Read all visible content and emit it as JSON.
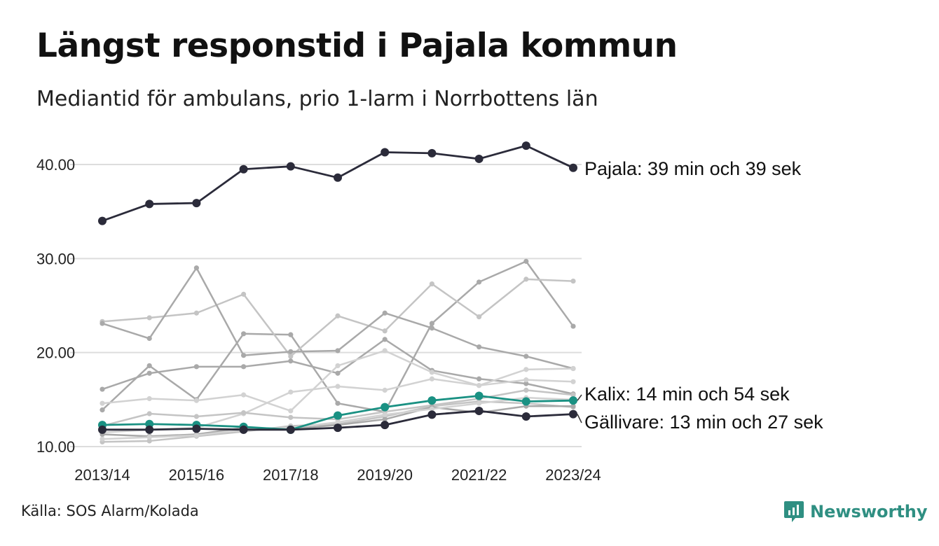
{
  "title": "Längst responstid i Pajala kommun",
  "subtitle": "Mediantid för ambulans, prio 1-larm i Norrbottens län",
  "source": "Källa: SOS Alarm/Kolada",
  "brand": {
    "name": "Newsworthy",
    "icon": "newsworthy-logo-icon",
    "color": "#2f8f82"
  },
  "colors": {
    "highlight": "#2b2b3a",
    "accent": "#1a9183",
    "gray": [
      "#c4c4c4",
      "#a9a9a9",
      "#d2d2d2"
    ],
    "grid": "#dddddd"
  },
  "chart_data": {
    "type": "line",
    "x": [
      "2013/14",
      "2014/15",
      "2015/16",
      "2016/17",
      "2017/18",
      "2018/19",
      "2019/20",
      "2020/21",
      "2021/22",
      "2022/23",
      "2023/24"
    ],
    "x_ticks": [
      "2013/14",
      "2015/16",
      "2017/18",
      "2019/20",
      "2021/22",
      "2023/24"
    ],
    "ylim": [
      10,
      42
    ],
    "y_ticks": [
      "10.00",
      "20.00",
      "30.00",
      "40.00"
    ],
    "grid": true,
    "highlighted": [
      {
        "name": "Pajala",
        "label": "Pajala: 39 min och 39 sek",
        "color": "#2b2b3a",
        "values": [
          34.0,
          35.8,
          35.9,
          39.5,
          39.8,
          38.6,
          41.3,
          41.2,
          40.6,
          42.0,
          39.65
        ]
      },
      {
        "name": "Kalix",
        "label": "Kalix: 14 min och 54 sek",
        "color": "#1a9183",
        "values": [
          12.3,
          12.4,
          12.3,
          12.1,
          11.8,
          13.3,
          14.2,
          14.9,
          15.4,
          14.8,
          14.9
        ]
      },
      {
        "name": "Gällivare",
        "label": "Gällivare: 13 min och 27 sek",
        "color": "#2b2b3a",
        "values": [
          11.8,
          11.8,
          11.9,
          11.8,
          11.8,
          12.0,
          12.3,
          13.4,
          13.8,
          13.2,
          13.45
        ]
      }
    ],
    "background_series": [
      {
        "color": "#a9a9a9",
        "values": [
          13.9,
          18.6,
          15.0,
          22.0,
          21.9,
          14.6,
          13.7,
          23.1,
          27.5,
          29.7,
          22.8
        ]
      },
      {
        "color": "#c4c4c4",
        "values": [
          23.3,
          23.7,
          24.2,
          26.2,
          19.6,
          23.9,
          22.3,
          27.3,
          23.8,
          27.8,
          27.6
        ]
      },
      {
        "color": "#a9a9a9",
        "values": [
          23.1,
          21.5,
          29.0,
          19.7,
          20.1,
          20.2,
          24.2,
          22.6,
          20.6,
          19.6,
          18.3
        ]
      },
      {
        "color": "#a9a9a9",
        "values": [
          16.1,
          17.8,
          18.5,
          18.5,
          19.1,
          17.8,
          21.4,
          18.1,
          17.2,
          16.7,
          15.6
        ]
      },
      {
        "color": "#d2d2d2",
        "values": [
          14.6,
          15.1,
          14.9,
          15.5,
          13.8,
          18.6,
          20.2,
          17.9,
          16.5,
          18.2,
          18.3
        ]
      },
      {
        "color": "#d2d2d2",
        "values": [
          11.5,
          11.8,
          12.0,
          13.5,
          15.8,
          16.4,
          16.0,
          17.2,
          16.5,
          17.1,
          16.9
        ]
      },
      {
        "color": "#c4c4c4",
        "values": [
          12.2,
          13.5,
          13.2,
          13.6,
          13.1,
          12.9,
          13.7,
          14.4,
          15.1,
          16.0,
          15.5
        ]
      },
      {
        "color": "#c4c4c4",
        "values": [
          10.5,
          10.6,
          11.1,
          11.6,
          12.2,
          12.4,
          13.2,
          14.3,
          14.8,
          14.6,
          14.2
        ]
      },
      {
        "color": "#a9a9a9",
        "values": [
          11.3,
          11.1,
          11.3,
          12.0,
          11.9,
          12.3,
          12.9,
          14.2,
          13.6,
          14.3,
          14.3
        ]
      },
      {
        "color": "#d2d2d2",
        "values": [
          10.8,
          11.0,
          11.2,
          11.8,
          12.0,
          12.6,
          13.4,
          14.0,
          14.6,
          15.2,
          15.0
        ]
      }
    ]
  }
}
